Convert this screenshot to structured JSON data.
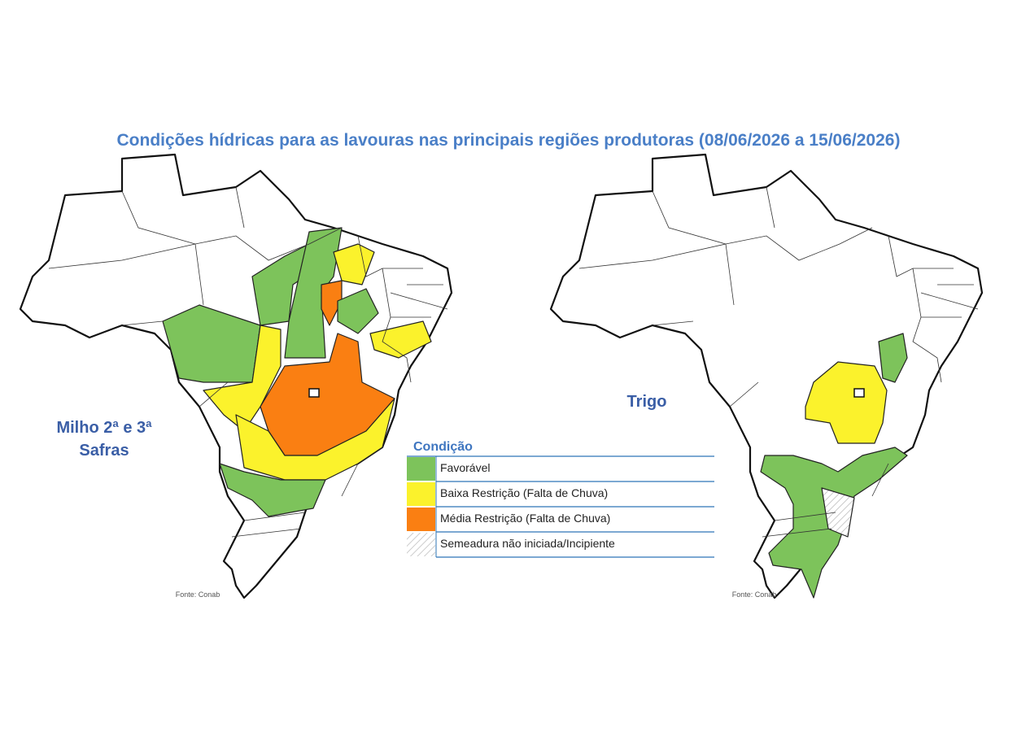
{
  "title": "Condições hídricas para as lavouras nas principais regiões produtoras (08/06/2026 a 15/06/2026)",
  "maps": [
    {
      "label_lines": [
        "Milho 2ª e 3ª",
        "Safras"
      ],
      "source": "Fonte: Conab"
    },
    {
      "label_lines": [
        "Trigo"
      ],
      "source": "Fonte: Conab"
    }
  ],
  "legend": {
    "title": "Condição",
    "items": [
      {
        "label": "Favorável",
        "color": "#7dc35b"
      },
      {
        "label": "Baixa Restrição (Falta de Chuva)",
        "color": "#fbf22c"
      },
      {
        "label": "Média Restrição (Falta de Chuva)",
        "color": "#fa7f12"
      },
      {
        "label": "Semeadura não iniciada/Incipiente",
        "pattern": "hatch"
      }
    ]
  }
}
